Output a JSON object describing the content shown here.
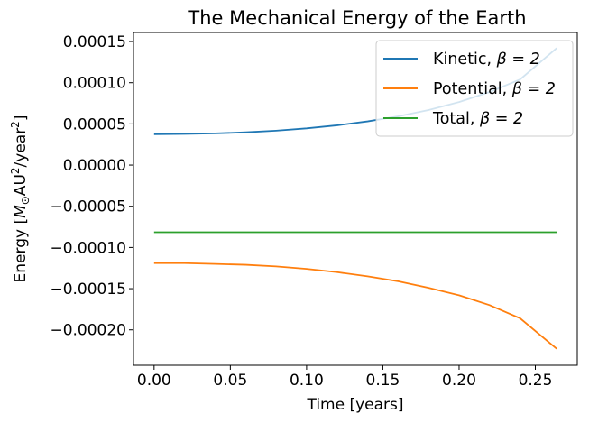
{
  "chart_data": {
    "type": "line",
    "title": "The Mechanical Energy of the Earth",
    "xlabel": "Time [years]",
    "ylabel_parts": [
      "Energy [",
      "M",
      "⊙",
      "AU",
      "2",
      "/year",
      "2",
      "]"
    ],
    "xlim": [
      -0.0135,
      0.2775
    ],
    "ylim": [
      -0.000243,
      0.000161
    ],
    "x_ticks": [
      0.0,
      0.05,
      0.1,
      0.15,
      0.2,
      0.25
    ],
    "x_tick_labels": [
      "0.00",
      "0.05",
      "0.10",
      "0.15",
      "0.20",
      "0.25"
    ],
    "y_ticks": [
      0.00015,
      0.0001,
      5e-05,
      0.0,
      -5e-05,
      -0.0001,
      -0.00015,
      -0.0002
    ],
    "y_tick_labels": [
      "0.00015",
      "0.00010",
      "0.00005",
      "0.00000",
      "−0.00005",
      "−0.00010",
      "−0.00015",
      "−0.00020"
    ],
    "grid": false,
    "legend_position": "top-right",
    "legend_beta": "β = 2",
    "series": [
      {
        "name": "Kinetic, β = 2",
        "label_prefix": "Kinetic, ",
        "color": "#1f77b4",
        "x": [
          0.0,
          0.02,
          0.04,
          0.06,
          0.08,
          0.1,
          0.12,
          0.14,
          0.16,
          0.18,
          0.2,
          0.22,
          0.24,
          0.264
        ],
        "y": [
          3.75e-05,
          3.78e-05,
          3.85e-05,
          3.98e-05,
          4.18e-05,
          4.46e-05,
          4.83e-05,
          5.31e-05,
          5.92e-05,
          6.69e-05,
          7.66e-05,
          8.87e-05,
          0.000104,
          0.000142
        ]
      },
      {
        "name": "Potential, β = 2",
        "label_prefix": "Potential, ",
        "color": "#ff7f0e",
        "x": [
          0.0,
          0.02,
          0.04,
          0.06,
          0.08,
          0.1,
          0.12,
          0.14,
          0.16,
          0.18,
          0.2,
          0.22,
          0.24,
          0.264
        ],
        "y": [
          -0.000119,
          -0.000119,
          -0.00012,
          -0.000121,
          -0.000123,
          -0.000126,
          -0.00013,
          -0.000135,
          -0.000141,
          -0.000149,
          -0.000158,
          -0.00017,
          -0.000186,
          -0.000223
        ]
      },
      {
        "name": "Total, β = 2",
        "label_prefix": "Total, ",
        "color": "#2ca02c",
        "x": [
          0.0,
          0.264
        ],
        "y": [
          -8.15e-05,
          -8.15e-05
        ]
      }
    ]
  }
}
